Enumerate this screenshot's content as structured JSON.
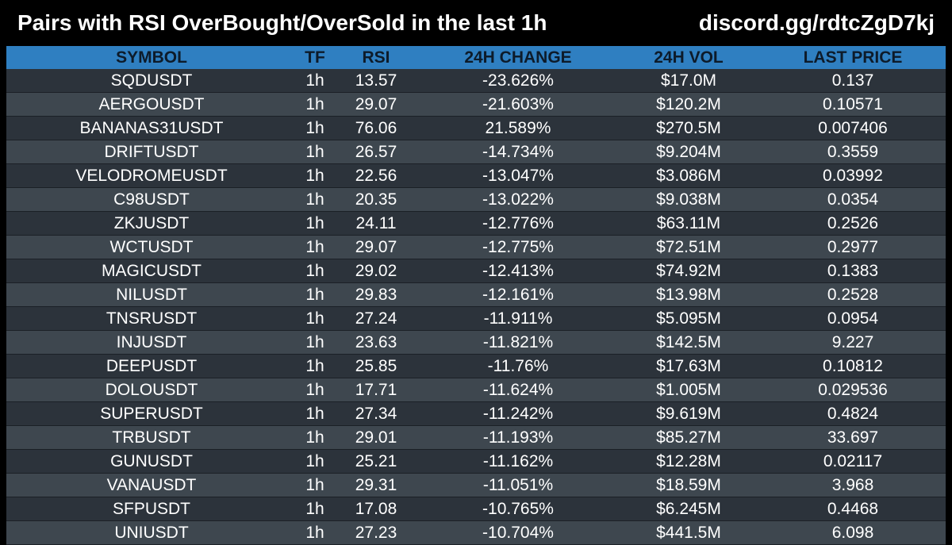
{
  "header": {
    "title": "Pairs with RSI OverBought/OverSold in the last 1h",
    "discord": "discord.gg/rdtcZgD7kj"
  },
  "table": {
    "columns": [
      "SYMBOL",
      "TF",
      "RSI",
      "24H CHANGE",
      "24H VOL",
      "LAST PRICE"
    ],
    "rows": [
      [
        "SQDUSDT",
        "1h",
        "13.57",
        "-23.626%",
        "$17.0M",
        "0.137"
      ],
      [
        "AERGOUSDT",
        "1h",
        "29.07",
        "-21.603%",
        "$120.2M",
        "0.10571"
      ],
      [
        "BANANAS31USDT",
        "1h",
        "76.06",
        "21.589%",
        "$270.5M",
        "0.007406"
      ],
      [
        "DRIFTUSDT",
        "1h",
        "26.57",
        "-14.734%",
        "$9.204M",
        "0.3559"
      ],
      [
        "VELODROMEUSDT",
        "1h",
        "22.56",
        "-13.047%",
        "$3.086M",
        "0.03992"
      ],
      [
        "C98USDT",
        "1h",
        "20.35",
        "-13.022%",
        "$9.038M",
        "0.0354"
      ],
      [
        "ZKJUSDT",
        "1h",
        "24.11",
        "-12.776%",
        "$63.11M",
        "0.2526"
      ],
      [
        "WCTUSDT",
        "1h",
        "29.07",
        "-12.775%",
        "$72.51M",
        "0.2977"
      ],
      [
        "MAGICUSDT",
        "1h",
        "29.02",
        "-12.413%",
        "$74.92M",
        "0.1383"
      ],
      [
        "NILUSDT",
        "1h",
        "29.83",
        "-12.161%",
        "$13.98M",
        "0.2528"
      ],
      [
        "TNSRUSDT",
        "1h",
        "27.24",
        "-11.911%",
        "$5.095M",
        "0.0954"
      ],
      [
        "INJUSDT",
        "1h",
        "23.63",
        "-11.821%",
        "$142.5M",
        "9.227"
      ],
      [
        "DEEPUSDT",
        "1h",
        "25.85",
        "-11.76%",
        "$17.63M",
        "0.10812"
      ],
      [
        "DOLOUSDT",
        "1h",
        "17.71",
        "-11.624%",
        "$1.005M",
        "0.029536"
      ],
      [
        "SUPERUSDT",
        "1h",
        "27.34",
        "-11.242%",
        "$9.619M",
        "0.4824"
      ],
      [
        "TRBUSDT",
        "1h",
        "29.01",
        "-11.193%",
        "$85.27M",
        "33.697"
      ],
      [
        "GUNUSDT",
        "1h",
        "25.21",
        "-11.162%",
        "$12.28M",
        "0.02117"
      ],
      [
        "VANAUSDT",
        "1h",
        "29.31",
        "-11.051%",
        "$18.59M",
        "3.968"
      ],
      [
        "SFPUSDT",
        "1h",
        "17.08",
        "-10.765%",
        "$6.245M",
        "0.4468"
      ],
      [
        "UNIUSDT",
        "1h",
        "27.23",
        "-10.704%",
        "$441.5M",
        "6.098"
      ]
    ]
  },
  "colors": {
    "background": "#000000",
    "header_row": "#2f7fc1",
    "row_odd": "#2c333b",
    "row_even": "#3e474f"
  }
}
